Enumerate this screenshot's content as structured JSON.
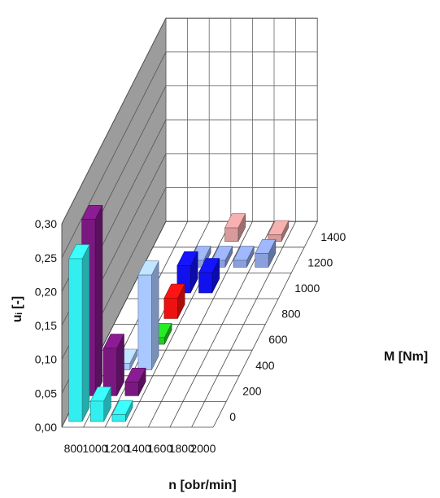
{
  "chart_data": {
    "type": "bar",
    "title": "",
    "xlabel": "n [obr/min]",
    "ylabel": "uᵢ [-]",
    "zlabel": "M [Nm]",
    "x_categories": [
      "800",
      "1000",
      "1200",
      "1400",
      "1600",
      "1800",
      "2000"
    ],
    "z_categories": [
      "0",
      "200",
      "400",
      "600",
      "800",
      "1000",
      "1200",
      "1400"
    ],
    "y_ticks": [
      "0,00",
      "0,05",
      "0,10",
      "0,15",
      "0,20",
      "0,25",
      "0,30"
    ],
    "ylim": [
      0,
      0.3
    ],
    "grid": true,
    "bars": [
      {
        "n": "800",
        "M": "0",
        "value": 0.24,
        "color": "#33eeee"
      },
      {
        "n": "800",
        "M": "200",
        "value": 0.26,
        "color": "#7a1880"
      },
      {
        "n": "1000",
        "M": "0",
        "value": 0.03,
        "color": "#33eeee"
      },
      {
        "n": "1000",
        "M": "200",
        "value": 0.07,
        "color": "#7a1880"
      },
      {
        "n": "1000",
        "M": "400",
        "value": 0.01,
        "color": "#a8c8ff"
      },
      {
        "n": "1200",
        "M": "0",
        "value": 0.01,
        "color": "#33eeee"
      },
      {
        "n": "1200",
        "M": "200",
        "value": 0.02,
        "color": "#7a1880"
      },
      {
        "n": "1200",
        "M": "400",
        "value": 0.14,
        "color": "#a8c8ff"
      },
      {
        "n": "1200",
        "M": "600",
        "value": 0.01,
        "color": "#22cc22"
      },
      {
        "n": "1200",
        "M": "800",
        "value": 0.03,
        "color": "#ee1111"
      },
      {
        "n": "1200",
        "M": "1000",
        "value": 0.04,
        "color": "#1111ee"
      },
      {
        "n": "1200",
        "M": "1200",
        "value": 0.01,
        "color": "#8aa0dd"
      },
      {
        "n": "1400",
        "M": "1000",
        "value": 0.03,
        "color": "#1111ee"
      },
      {
        "n": "1400",
        "M": "1200",
        "value": 0.01,
        "color": "#8aa0dd"
      },
      {
        "n": "1400",
        "M": "1400",
        "value": 0.02,
        "color": "#d89a9a"
      },
      {
        "n": "1600",
        "M": "1200",
        "value": 0.01,
        "color": "#8aa0dd"
      },
      {
        "n": "1800",
        "M": "1200",
        "value": 0.02,
        "color": "#8aa0dd"
      },
      {
        "n": "1800",
        "M": "1400",
        "value": 0.01,
        "color": "#d89a9a"
      }
    ]
  }
}
